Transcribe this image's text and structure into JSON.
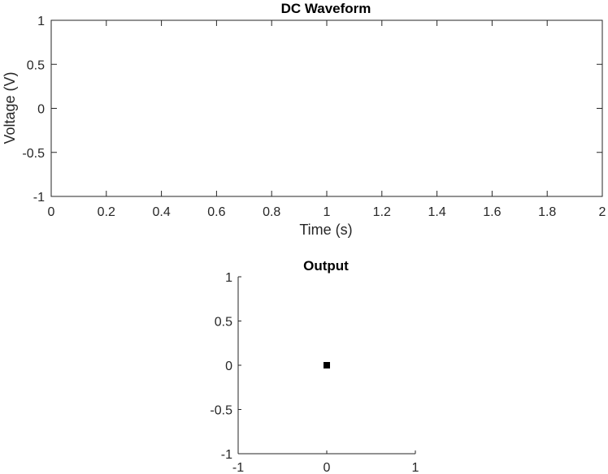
{
  "chart_data": [
    {
      "type": "line",
      "title": "DC Waveform",
      "xlabel": "Time (s)",
      "ylabel": "Voltage (V)",
      "xlim": [
        0,
        2
      ],
      "ylim": [
        -1,
        1
      ],
      "xticks": [
        "0",
        "0.2",
        "0.4",
        "0.6",
        "0.8",
        "1",
        "1.2",
        "1.4",
        "1.6",
        "1.8",
        "2"
      ],
      "yticks": [
        "-1",
        "-0.5",
        "0",
        "0.5",
        "1"
      ],
      "series": [],
      "grid": false,
      "box": true
    },
    {
      "type": "scatter",
      "title": "Output",
      "xlabel": "",
      "ylabel": "",
      "xlim": [
        -1,
        1
      ],
      "ylim": [
        -1,
        1
      ],
      "xticks": [
        "-1",
        "0",
        "1"
      ],
      "yticks": [
        "-1",
        "-0.5",
        "0",
        "0.5",
        "1"
      ],
      "points": [
        {
          "x": 0,
          "y": 0
        }
      ],
      "marker": "square",
      "marker_color": "#000000",
      "axis_color": "#262626",
      "grid": false,
      "box": false
    }
  ]
}
